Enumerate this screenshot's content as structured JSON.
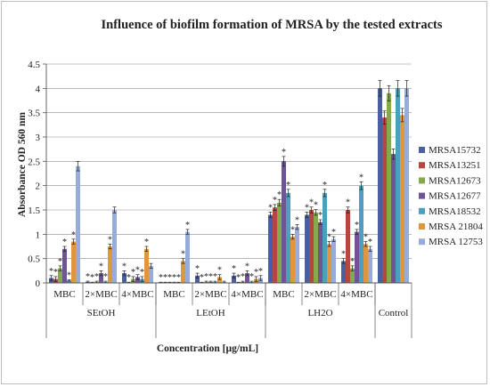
{
  "chart_data": {
    "type": "bar",
    "title": "Influence of biofilm formation of MRSA by the tested extracts",
    "xlabel": "Concentration [µg/mL]",
    "ylabel": "Absorbance  OD 560 nm",
    "ylim": [
      0,
      4.5
    ],
    "yticks": [
      "0",
      "0.5",
      "1",
      "1.5",
      "2",
      "2.5",
      "3",
      "3.5",
      "4",
      "4.5"
    ],
    "grid": true,
    "legend_position": "right",
    "categories": [
      "MBC",
      "2×MBC",
      "4×MBC",
      "MBC",
      "2×MBC",
      "4×MBC",
      "MBC",
      "2×MBC",
      "4×MBC",
      ""
    ],
    "groups": [
      {
        "label": "SEtOH",
        "span": [
          0,
          2
        ]
      },
      {
        "label": "LEtOH",
        "span": [
          3,
          5
        ]
      },
      {
        "label": "LH2O",
        "span": [
          6,
          8
        ]
      },
      {
        "label": "Control",
        "span": [
          9,
          9
        ]
      }
    ],
    "series": [
      {
        "name": "MRSA15732",
        "color": "#4a5fa0",
        "values": [
          0.1,
          0.02,
          0.2,
          0.0,
          0.15,
          0.15,
          1.4,
          1.4,
          0.45,
          4.0
        ]
      },
      {
        "name": "MRSA13251",
        "color": "#b5473f",
        "values": [
          0.08,
          0.0,
          0.0,
          0.0,
          0.0,
          0.0,
          1.55,
          1.5,
          1.5,
          3.4
        ]
      },
      {
        "name": "MRSA12673",
        "color": "#86a94b",
        "values": [
          0.3,
          0.02,
          0.08,
          0.0,
          0.02,
          0.02,
          1.65,
          1.45,
          0.3,
          3.9
        ]
      },
      {
        "name": "MRSA12677",
        "color": "#6f5596",
        "values": [
          0.7,
          0.2,
          0.12,
          0.0,
          0.02,
          0.2,
          2.5,
          1.25,
          1.05,
          2.65
        ]
      },
      {
        "name": "MRSA18532",
        "color": "#4aa0bd",
        "values": [
          0.05,
          0.02,
          0.08,
          0.0,
          0.02,
          0.02,
          1.85,
          1.85,
          2.0,
          4.0
        ]
      },
      {
        "name": "MRSA 21804",
        "color": "#e0963e",
        "values": [
          0.85,
          0.75,
          0.7,
          0.45,
          0.12,
          0.08,
          0.95,
          0.8,
          0.8,
          3.45
        ]
      },
      {
        "name": "MRSA 12753",
        "color": "#98acd8",
        "values": [
          2.4,
          1.5,
          0.35,
          1.05,
          0.02,
          0.1,
          1.15,
          0.9,
          0.7,
          4.0
        ]
      }
    ],
    "annotations": {
      "marker": "*",
      "marked": [
        [
          true,
          true,
          true,
          true,
          true,
          true,
          true,
          true,
          true,
          false
        ],
        [
          true,
          true,
          true,
          true,
          true,
          true,
          true,
          true,
          true,
          false
        ],
        [
          true,
          true,
          true,
          true,
          true,
          true,
          true,
          true,
          true,
          false
        ],
        [
          true,
          true,
          true,
          true,
          true,
          true,
          true,
          true,
          true,
          false
        ],
        [
          true,
          true,
          true,
          true,
          true,
          true,
          true,
          true,
          true,
          false
        ],
        [
          true,
          true,
          true,
          true,
          true,
          true,
          true,
          true,
          true,
          false
        ],
        [
          false,
          false,
          false,
          true,
          false,
          true,
          true,
          true,
          true,
          false
        ]
      ]
    }
  }
}
